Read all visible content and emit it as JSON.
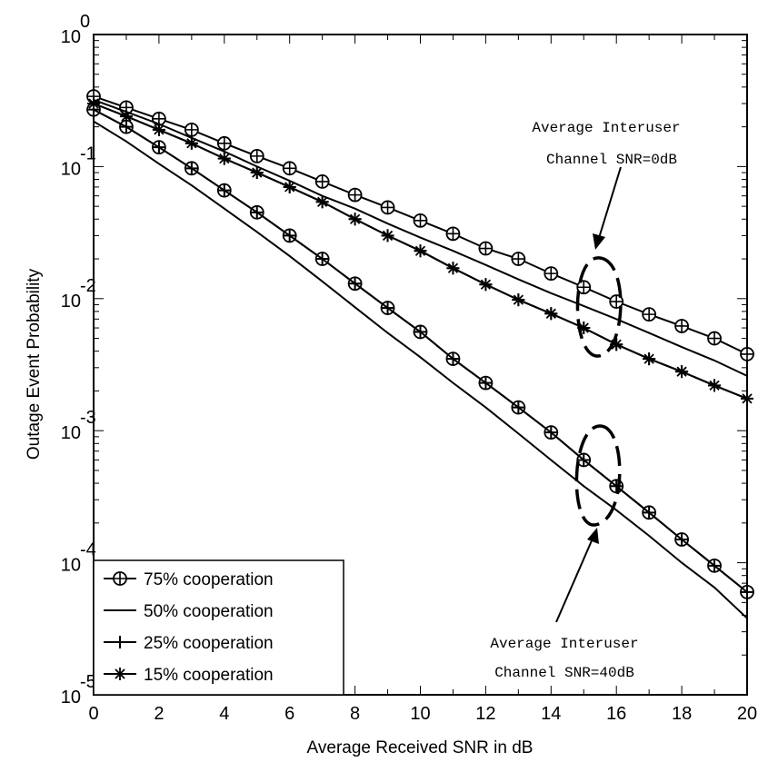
{
  "chart_data": {
    "type": "line",
    "xlabel": "Average Received SNR in dB",
    "ylabel": "Outage Event Probability",
    "xlim": [
      0,
      20
    ],
    "ylim": [
      1e-05,
      1
    ],
    "yscale": "log",
    "x_ticks": [
      "0",
      "2",
      "4",
      "6",
      "8",
      "10",
      "12",
      "14",
      "16",
      "18",
      "20"
    ],
    "y_ticks": [
      {
        "base": "10",
        "exp": "0"
      },
      {
        "base": "10",
        "exp": "-1"
      },
      {
        "base": "10",
        "exp": "-2"
      },
      {
        "base": "10",
        "exp": "-3"
      },
      {
        "base": "10",
        "exp": "-4"
      },
      {
        "base": "10",
        "exp": "-5"
      }
    ],
    "grid": false,
    "legend_position": "bottom-left",
    "series": [
      {
        "name": "75% cooperation",
        "marker": "circle-plus",
        "group": "0dB",
        "x": [
          0,
          1,
          2,
          3,
          4,
          5,
          6,
          7,
          8,
          9,
          10,
          11,
          12,
          13,
          14,
          15,
          16,
          17,
          18,
          19,
          20
        ],
        "y": [
          0.34,
          0.28,
          0.23,
          0.19,
          0.15,
          0.12,
          0.097,
          0.077,
          0.061,
          0.049,
          0.039,
          0.031,
          0.024,
          0.02,
          0.0155,
          0.0122,
          0.0095,
          0.0076,
          0.0062,
          0.005,
          0.0038
        ]
      },
      {
        "name": "75% cooperation",
        "marker": "circle-plus",
        "group": "40dB",
        "x": [
          0,
          1,
          2,
          3,
          4,
          5,
          6,
          7,
          8,
          9,
          10,
          11,
          12,
          13,
          14,
          15,
          16,
          17,
          18,
          19,
          20
        ],
        "y": [
          0.27,
          0.2,
          0.14,
          0.097,
          0.066,
          0.045,
          0.03,
          0.02,
          0.013,
          0.0085,
          0.0056,
          0.0035,
          0.0023,
          0.0015,
          0.00097,
          0.0006,
          0.00038,
          0.00024,
          0.00015,
          9.5e-05,
          6e-05
        ]
      },
      {
        "name": "50% cooperation",
        "marker": "none",
        "group": "0dB",
        "x": [
          0,
          1,
          2,
          3,
          4,
          5,
          6,
          7,
          8,
          9,
          10,
          11,
          12,
          13,
          14,
          15,
          16,
          17,
          18,
          19,
          20
        ],
        "y": [
          0.32,
          0.26,
          0.21,
          0.165,
          0.13,
          0.1,
          0.078,
          0.06,
          0.048,
          0.037,
          0.029,
          0.023,
          0.018,
          0.014,
          0.011,
          0.0088,
          0.007,
          0.0055,
          0.0043,
          0.0034,
          0.0026
        ]
      },
      {
        "name": "50% cooperation",
        "marker": "none",
        "group": "40dB",
        "x": [
          0,
          1,
          2,
          3,
          4,
          5,
          6,
          7,
          8,
          9,
          10,
          11,
          12,
          13,
          14,
          15,
          16,
          17,
          18,
          19,
          20
        ],
        "y": [
          0.22,
          0.155,
          0.105,
          0.072,
          0.048,
          0.032,
          0.021,
          0.0135,
          0.0086,
          0.0055,
          0.0036,
          0.0023,
          0.0015,
          0.00095,
          0.0006,
          0.00038,
          0.00025,
          0.00016,
          0.0001,
          6.5e-05,
          3.8e-05
        ]
      },
      {
        "name": "25% cooperation",
        "marker": "plus",
        "group": "0dB",
        "x": [
          0,
          1,
          2,
          3,
          4,
          5,
          6,
          7,
          8,
          9,
          10,
          11,
          12,
          13,
          14,
          15,
          16,
          17,
          18,
          19,
          20
        ],
        "y": [
          0.3,
          0.24,
          0.19,
          0.15,
          0.115,
          0.09,
          0.07,
          0.054,
          0.04,
          0.03,
          0.023,
          0.017,
          0.0128,
          0.0098,
          0.0077,
          0.006,
          0.0045,
          0.0035,
          0.0028,
          0.0022,
          0.00175
        ]
      },
      {
        "name": "25% cooperation",
        "marker": "plus",
        "group": "40dB",
        "x": [
          0,
          1,
          2,
          3,
          4,
          5,
          6,
          7,
          8,
          9,
          10,
          11,
          12,
          13,
          14,
          15,
          16,
          17,
          18,
          19,
          20
        ],
        "y": [
          0.27,
          0.2,
          0.14,
          0.097,
          0.066,
          0.045,
          0.03,
          0.02,
          0.013,
          0.0085,
          0.0056,
          0.0035,
          0.0023,
          0.0015,
          0.00097,
          0.0006,
          0.00038,
          0.00024,
          0.00015,
          9.5e-05,
          6e-05
        ]
      },
      {
        "name": "15% cooperation",
        "marker": "star",
        "group": "0dB",
        "x": [
          0,
          1,
          2,
          3,
          4,
          5,
          6,
          7,
          8,
          9,
          10,
          11,
          12,
          13,
          14,
          15,
          16,
          17,
          18,
          19,
          20
        ],
        "y": [
          0.3,
          0.24,
          0.19,
          0.15,
          0.115,
          0.09,
          0.07,
          0.054,
          0.04,
          0.03,
          0.023,
          0.017,
          0.0128,
          0.0098,
          0.0077,
          0.006,
          0.0045,
          0.0035,
          0.0028,
          0.0022,
          0.00175
        ]
      }
    ],
    "legend": [
      {
        "label": "75% cooperation",
        "marker": "circle-plus"
      },
      {
        "label": "50% cooperation",
        "marker": "none"
      },
      {
        "label": "25% cooperation",
        "marker": "plus"
      },
      {
        "label": "15% cooperation",
        "marker": "star"
      }
    ],
    "annotations": [
      {
        "lines": [
          "Average Interuser",
          "Channel SNR=0dB"
        ]
      },
      {
        "lines": [
          "Average Interuser",
          "Channel SNR=40dB"
        ]
      }
    ]
  }
}
